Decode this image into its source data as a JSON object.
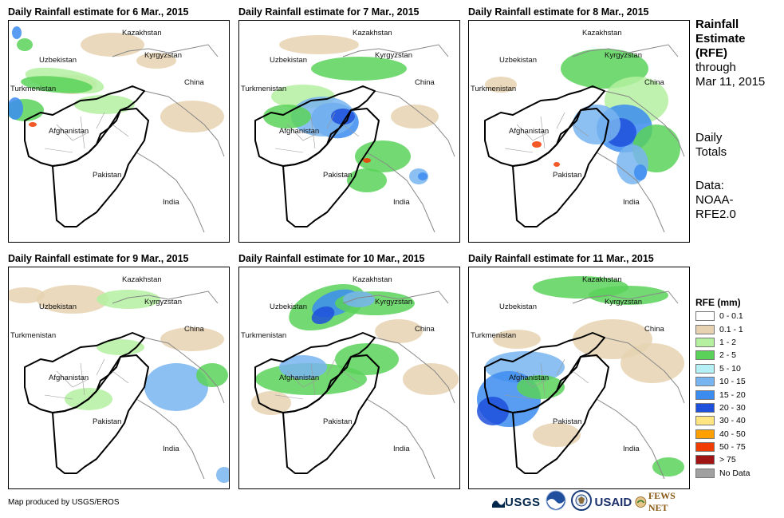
{
  "panels": [
    {
      "title": "Daily Rainfall estimate for 6 Mar., 2015"
    },
    {
      "title": "Daily Rainfall estimate for 7 Mar., 2015"
    },
    {
      "title": "Daily Rainfall estimate for 8 Mar., 2015"
    },
    {
      "title": "Daily Rainfall estimate for 9 Mar., 2015"
    },
    {
      "title": "Daily Rainfall estimate for 10 Mar., 2015"
    },
    {
      "title": "Daily Rainfall estimate for 11 Mar., 2015"
    }
  ],
  "map_labels": {
    "kazakhstan": "Kazakhstan",
    "uzbekistan": "Uzbekistan",
    "kyrgyzstan": "Kyrgyzstan",
    "turkmenistan": "Turkmenistan",
    "china": "China",
    "afghanistan": "Afghanistan",
    "pakistan": "Pakistan",
    "india": "India"
  },
  "side_text": {
    "line1": "Rainfall",
    "line2": "Estimate",
    "line3": "(RFE)",
    "line4": "through",
    "line5": "Mar 11, 2015",
    "daily1": "Daily",
    "daily2": "Totals",
    "data1": "Data:",
    "data2": "NOAA-",
    "data3": "RFE2.0"
  },
  "legend": {
    "title": "RFE (mm)",
    "items": [
      {
        "label": "0 - 0.1",
        "color": "#ffffff"
      },
      {
        "label": "0.1 - 1",
        "color": "#e6d2b0"
      },
      {
        "label": "1 - 2",
        "color": "#b4f0a0"
      },
      {
        "label": "2 - 5",
        "color": "#5ad25a"
      },
      {
        "label": "5 - 10",
        "color": "#b4f0f5"
      },
      {
        "label": "10 - 15",
        "color": "#78b4f0"
      },
      {
        "label": "15 - 20",
        "color": "#3c8cf0"
      },
      {
        "label": "20 - 30",
        "color": "#1e50dc"
      },
      {
        "label": "30 - 40",
        "color": "#ffe682"
      },
      {
        "label": "40 - 50",
        "color": "#ffa000"
      },
      {
        "label": "50 - 75",
        "color": "#f03c00"
      },
      {
        "label": "> 75",
        "color": "#a01414"
      },
      {
        "label": "No Data",
        "color": "#a0a0a0"
      }
    ]
  },
  "footer": "Map produced by USGS/EROS",
  "logos": {
    "usgs": "USGS",
    "usaid": "USAID",
    "fewsnet": "FEWS NET"
  }
}
